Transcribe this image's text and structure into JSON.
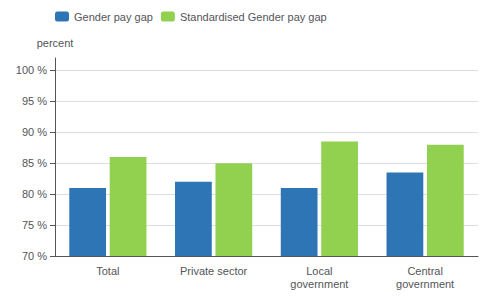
{
  "chart_data": {
    "type": "bar",
    "categories": [
      "Total",
      "Private sector",
      "Local\ngovernment",
      "Central\ngovernment"
    ],
    "series": [
      {
        "name": "Gender pay gap",
        "color": "#2E75B6",
        "values": [
          81,
          82,
          81,
          83.5
        ]
      },
      {
        "name": "Standardised Gender pay gap",
        "color": "#92D050",
        "values": [
          86,
          85,
          88.5,
          88
        ]
      }
    ],
    "ylabel": "percent",
    "ylim": [
      70,
      102
    ],
    "yticks": [
      {
        "value": 70,
        "label": "70 %"
      },
      {
        "value": 75,
        "label": "75 %"
      },
      {
        "value": 80,
        "label": "80 %"
      },
      {
        "value": 85,
        "label": "85 %"
      },
      {
        "value": 90,
        "label": "90 %"
      },
      {
        "value": 95,
        "label": "95 %"
      },
      {
        "value": 100,
        "label": "100 %"
      }
    ],
    "grid": true,
    "legend": "upper left"
  }
}
